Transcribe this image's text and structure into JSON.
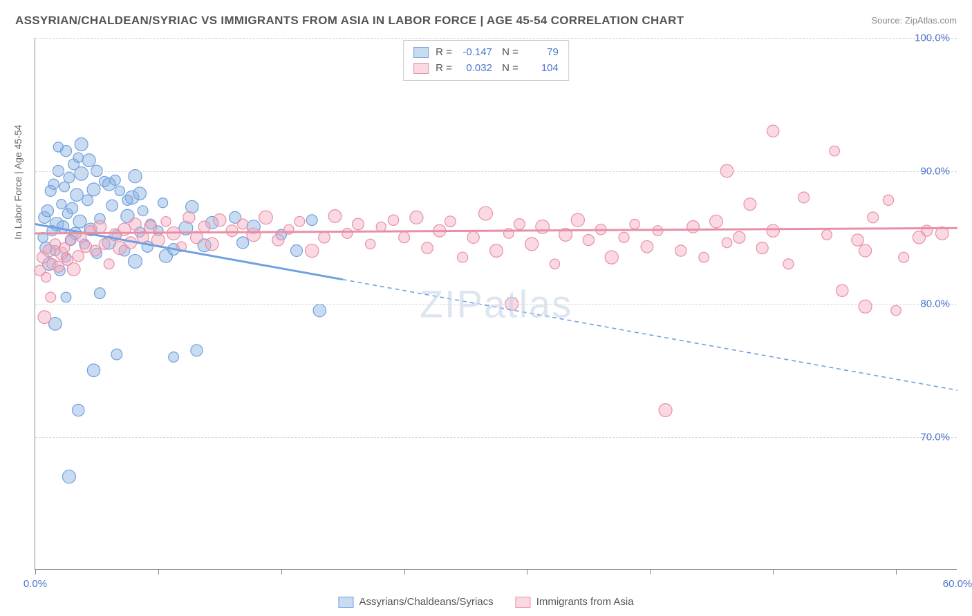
{
  "title": "ASSYRIAN/CHALDEAN/SYRIAC VS IMMIGRANTS FROM ASIA IN LABOR FORCE | AGE 45-54 CORRELATION CHART",
  "source": "Source: ZipAtlas.com",
  "watermark": "ZIPatlas",
  "y_axis_label": "In Labor Force | Age 45-54",
  "chart": {
    "type": "scatter-correlation",
    "xlim": [
      0,
      60
    ],
    "ylim": [
      60,
      100
    ],
    "x_ticks": [
      0,
      8,
      16,
      24,
      32,
      40,
      48,
      56
    ],
    "x_tick_labels": {
      "0": "0.0%",
      "60": "60.0%"
    },
    "y_ticks": [
      70,
      80,
      90,
      100
    ],
    "y_tick_labels": {
      "70": "70.0%",
      "80": "80.0%",
      "90": "90.0%",
      "100": "100.0%"
    },
    "grid_color": "#d8d8d8",
    "background_color": "#ffffff",
    "series": [
      {
        "name": "Assyrians/Chaldeans/Syriacs",
        "stroke": "#6fa0e0",
        "fill": "rgba(135,175,225,0.45)",
        "R": "-0.147",
        "N": "79",
        "trend": {
          "x1": 0,
          "y1": 86.0,
          "x2": 60,
          "y2": 73.5,
          "solid_until_x": 20
        },
        "points": [
          [
            0.5,
            85
          ],
          [
            0.6,
            86.5
          ],
          [
            0.7,
            84.2
          ],
          [
            0.8,
            87
          ],
          [
            0.9,
            83
          ],
          [
            1.0,
            88.5
          ],
          [
            1.1,
            85.5
          ],
          [
            1.2,
            89
          ],
          [
            1.3,
            84
          ],
          [
            1.4,
            86
          ],
          [
            1.5,
            90
          ],
          [
            1.6,
            82.5
          ],
          [
            1.7,
            87.5
          ],
          [
            1.8,
            85.8
          ],
          [
            1.9,
            88.8
          ],
          [
            2.0,
            83.5
          ],
          [
            2.1,
            86.8
          ],
          [
            2.2,
            89.5
          ],
          [
            2.3,
            84.8
          ],
          [
            2.4,
            87.2
          ],
          [
            2.5,
            90.5
          ],
          [
            2.6,
            85.3
          ],
          [
            2.7,
            88.2
          ],
          [
            1.3,
            78.5
          ],
          [
            2.0,
            80.5
          ],
          [
            2.9,
            86.2
          ],
          [
            3.0,
            89.8
          ],
          [
            3.2,
            84.5
          ],
          [
            3.4,
            87.8
          ],
          [
            3.6,
            85.6
          ],
          [
            3.8,
            88.6
          ],
          [
            4.0,
            83.8
          ],
          [
            4.2,
            86.4
          ],
          [
            4.5,
            89.2
          ],
          [
            4.8,
            84.6
          ],
          [
            5.0,
            87.4
          ],
          [
            5.3,
            85.2
          ],
          [
            3.0,
            92
          ],
          [
            5.8,
            84.0
          ],
          [
            6.0,
            86.6
          ],
          [
            6.3,
            88.0
          ],
          [
            6.5,
            83.2
          ],
          [
            6.8,
            85.4
          ],
          [
            7.0,
            87.0
          ],
          [
            7.3,
            84.3
          ],
          [
            7.5,
            86.0
          ],
          [
            5.2,
            89.3
          ],
          [
            8.0,
            85.5
          ],
          [
            8.3,
            87.6
          ],
          [
            8.5,
            83.6
          ],
          [
            6.5,
            89.6
          ],
          [
            9.0,
            84.1
          ],
          [
            3.8,
            75.0
          ],
          [
            9.8,
            85.7
          ],
          [
            10.2,
            87.3
          ],
          [
            2.8,
            72.0
          ],
          [
            11.0,
            84.4
          ],
          [
            11.5,
            86.1
          ],
          [
            5.3,
            76.2
          ],
          [
            4.2,
            80.8
          ],
          [
            13.0,
            86.5
          ],
          [
            13.5,
            84.6
          ],
          [
            14.2,
            85.8
          ],
          [
            2.2,
            67.0
          ],
          [
            9.0,
            76.0
          ],
          [
            16.0,
            85.2
          ],
          [
            17.0,
            84.0
          ],
          [
            18.0,
            86.3
          ],
          [
            18.5,
            79.5
          ],
          [
            10.5,
            76.5
          ],
          [
            2.0,
            91.5
          ],
          [
            1.5,
            91.8
          ],
          [
            2.8,
            91.0
          ],
          [
            3.5,
            90.8
          ],
          [
            4.0,
            90.0
          ],
          [
            4.8,
            89.0
          ],
          [
            5.5,
            88.5
          ],
          [
            6.0,
            87.8
          ],
          [
            6.8,
            88.3
          ]
        ]
      },
      {
        "name": "Immigrants from Asia",
        "stroke": "#e88fa5",
        "fill": "rgba(245,170,190,0.45)",
        "R": "0.032",
        "N": "104",
        "trend": {
          "x1": 0,
          "y1": 85.3,
          "x2": 60,
          "y2": 85.7,
          "solid_until_x": 60
        },
        "points": [
          [
            0.3,
            82.5
          ],
          [
            0.5,
            83.5
          ],
          [
            0.7,
            82.0
          ],
          [
            0.9,
            84.0
          ],
          [
            1.1,
            83.0
          ],
          [
            1.3,
            84.5
          ],
          [
            1.5,
            82.8
          ],
          [
            1.7,
            83.8
          ],
          [
            1.9,
            84.2
          ],
          [
            2.1,
            83.3
          ],
          [
            2.3,
            84.8
          ],
          [
            2.5,
            82.6
          ],
          [
            2.8,
            83.6
          ],
          [
            3.0,
            85.0
          ],
          [
            3.3,
            84.3
          ],
          [
            3.6,
            85.5
          ],
          [
            3.9,
            84.0
          ],
          [
            4.2,
            85.8
          ],
          [
            4.5,
            84.5
          ],
          [
            4.8,
            83.0
          ],
          [
            0.6,
            79.0
          ],
          [
            5.2,
            85.2
          ],
          [
            5.5,
            84.2
          ],
          [
            5.8,
            85.6
          ],
          [
            6.2,
            84.6
          ],
          [
            6.5,
            86.0
          ],
          [
            7.0,
            85.0
          ],
          [
            7.5,
            85.8
          ],
          [
            8.0,
            84.8
          ],
          [
            8.5,
            86.2
          ],
          [
            1.0,
            80.5
          ],
          [
            9.0,
            85.3
          ],
          [
            9.5,
            84.3
          ],
          [
            10.0,
            86.5
          ],
          [
            10.5,
            85.0
          ],
          [
            11.0,
            85.8
          ],
          [
            11.5,
            84.5
          ],
          [
            12.0,
            86.3
          ],
          [
            12.8,
            85.5
          ],
          [
            13.5,
            86.0
          ],
          [
            14.2,
            85.2
          ],
          [
            15.0,
            86.5
          ],
          [
            15.8,
            84.8
          ],
          [
            16.5,
            85.6
          ],
          [
            17.2,
            86.2
          ],
          [
            18.0,
            84.0
          ],
          [
            18.8,
            85.0
          ],
          [
            19.5,
            86.6
          ],
          [
            20.3,
            85.3
          ],
          [
            21.0,
            86.0
          ],
          [
            21.8,
            84.5
          ],
          [
            22.5,
            85.8
          ],
          [
            23.3,
            86.3
          ],
          [
            24.0,
            85.0
          ],
          [
            24.8,
            86.5
          ],
          [
            25.5,
            84.2
          ],
          [
            26.3,
            85.5
          ],
          [
            27.0,
            86.2
          ],
          [
            27.8,
            83.5
          ],
          [
            28.5,
            85.0
          ],
          [
            29.3,
            86.8
          ],
          [
            30.0,
            84.0
          ],
          [
            30.8,
            85.3
          ],
          [
            31.5,
            86.0
          ],
          [
            32.3,
            84.5
          ],
          [
            33.0,
            85.8
          ],
          [
            33.8,
            83.0
          ],
          [
            34.5,
            85.2
          ],
          [
            35.3,
            86.3
          ],
          [
            36.0,
            84.8
          ],
          [
            36.8,
            85.6
          ],
          [
            37.5,
            83.5
          ],
          [
            38.3,
            85.0
          ],
          [
            39.0,
            86.0
          ],
          [
            39.8,
            84.3
          ],
          [
            40.5,
            85.5
          ],
          [
            31.0,
            80.0
          ],
          [
            42.0,
            84.0
          ],
          [
            42.8,
            85.8
          ],
          [
            43.5,
            83.5
          ],
          [
            44.3,
            86.2
          ],
          [
            45.0,
            84.6
          ],
          [
            45.8,
            85.0
          ],
          [
            46.5,
            87.5
          ],
          [
            47.3,
            84.2
          ],
          [
            48.0,
            85.5
          ],
          [
            49.0,
            83.0
          ],
          [
            41.0,
            72.0
          ],
          [
            45.0,
            90.0
          ],
          [
            51.5,
            85.2
          ],
          [
            48.0,
            93.0
          ],
          [
            53.5,
            84.8
          ],
          [
            54.5,
            86.5
          ],
          [
            52.0,
            91.5
          ],
          [
            54.0,
            79.8
          ],
          [
            56.0,
            79.5
          ],
          [
            50.0,
            88.0
          ],
          [
            52.5,
            81.0
          ],
          [
            55.5,
            87.8
          ],
          [
            58.0,
            85.5
          ],
          [
            54.0,
            84.0
          ],
          [
            56.5,
            83.5
          ],
          [
            57.5,
            85.0
          ],
          [
            59.0,
            85.3
          ]
        ]
      }
    ]
  },
  "colors": {
    "axis_text": "#4a74c9",
    "label_text": "#666666",
    "title_text": "#555555"
  }
}
